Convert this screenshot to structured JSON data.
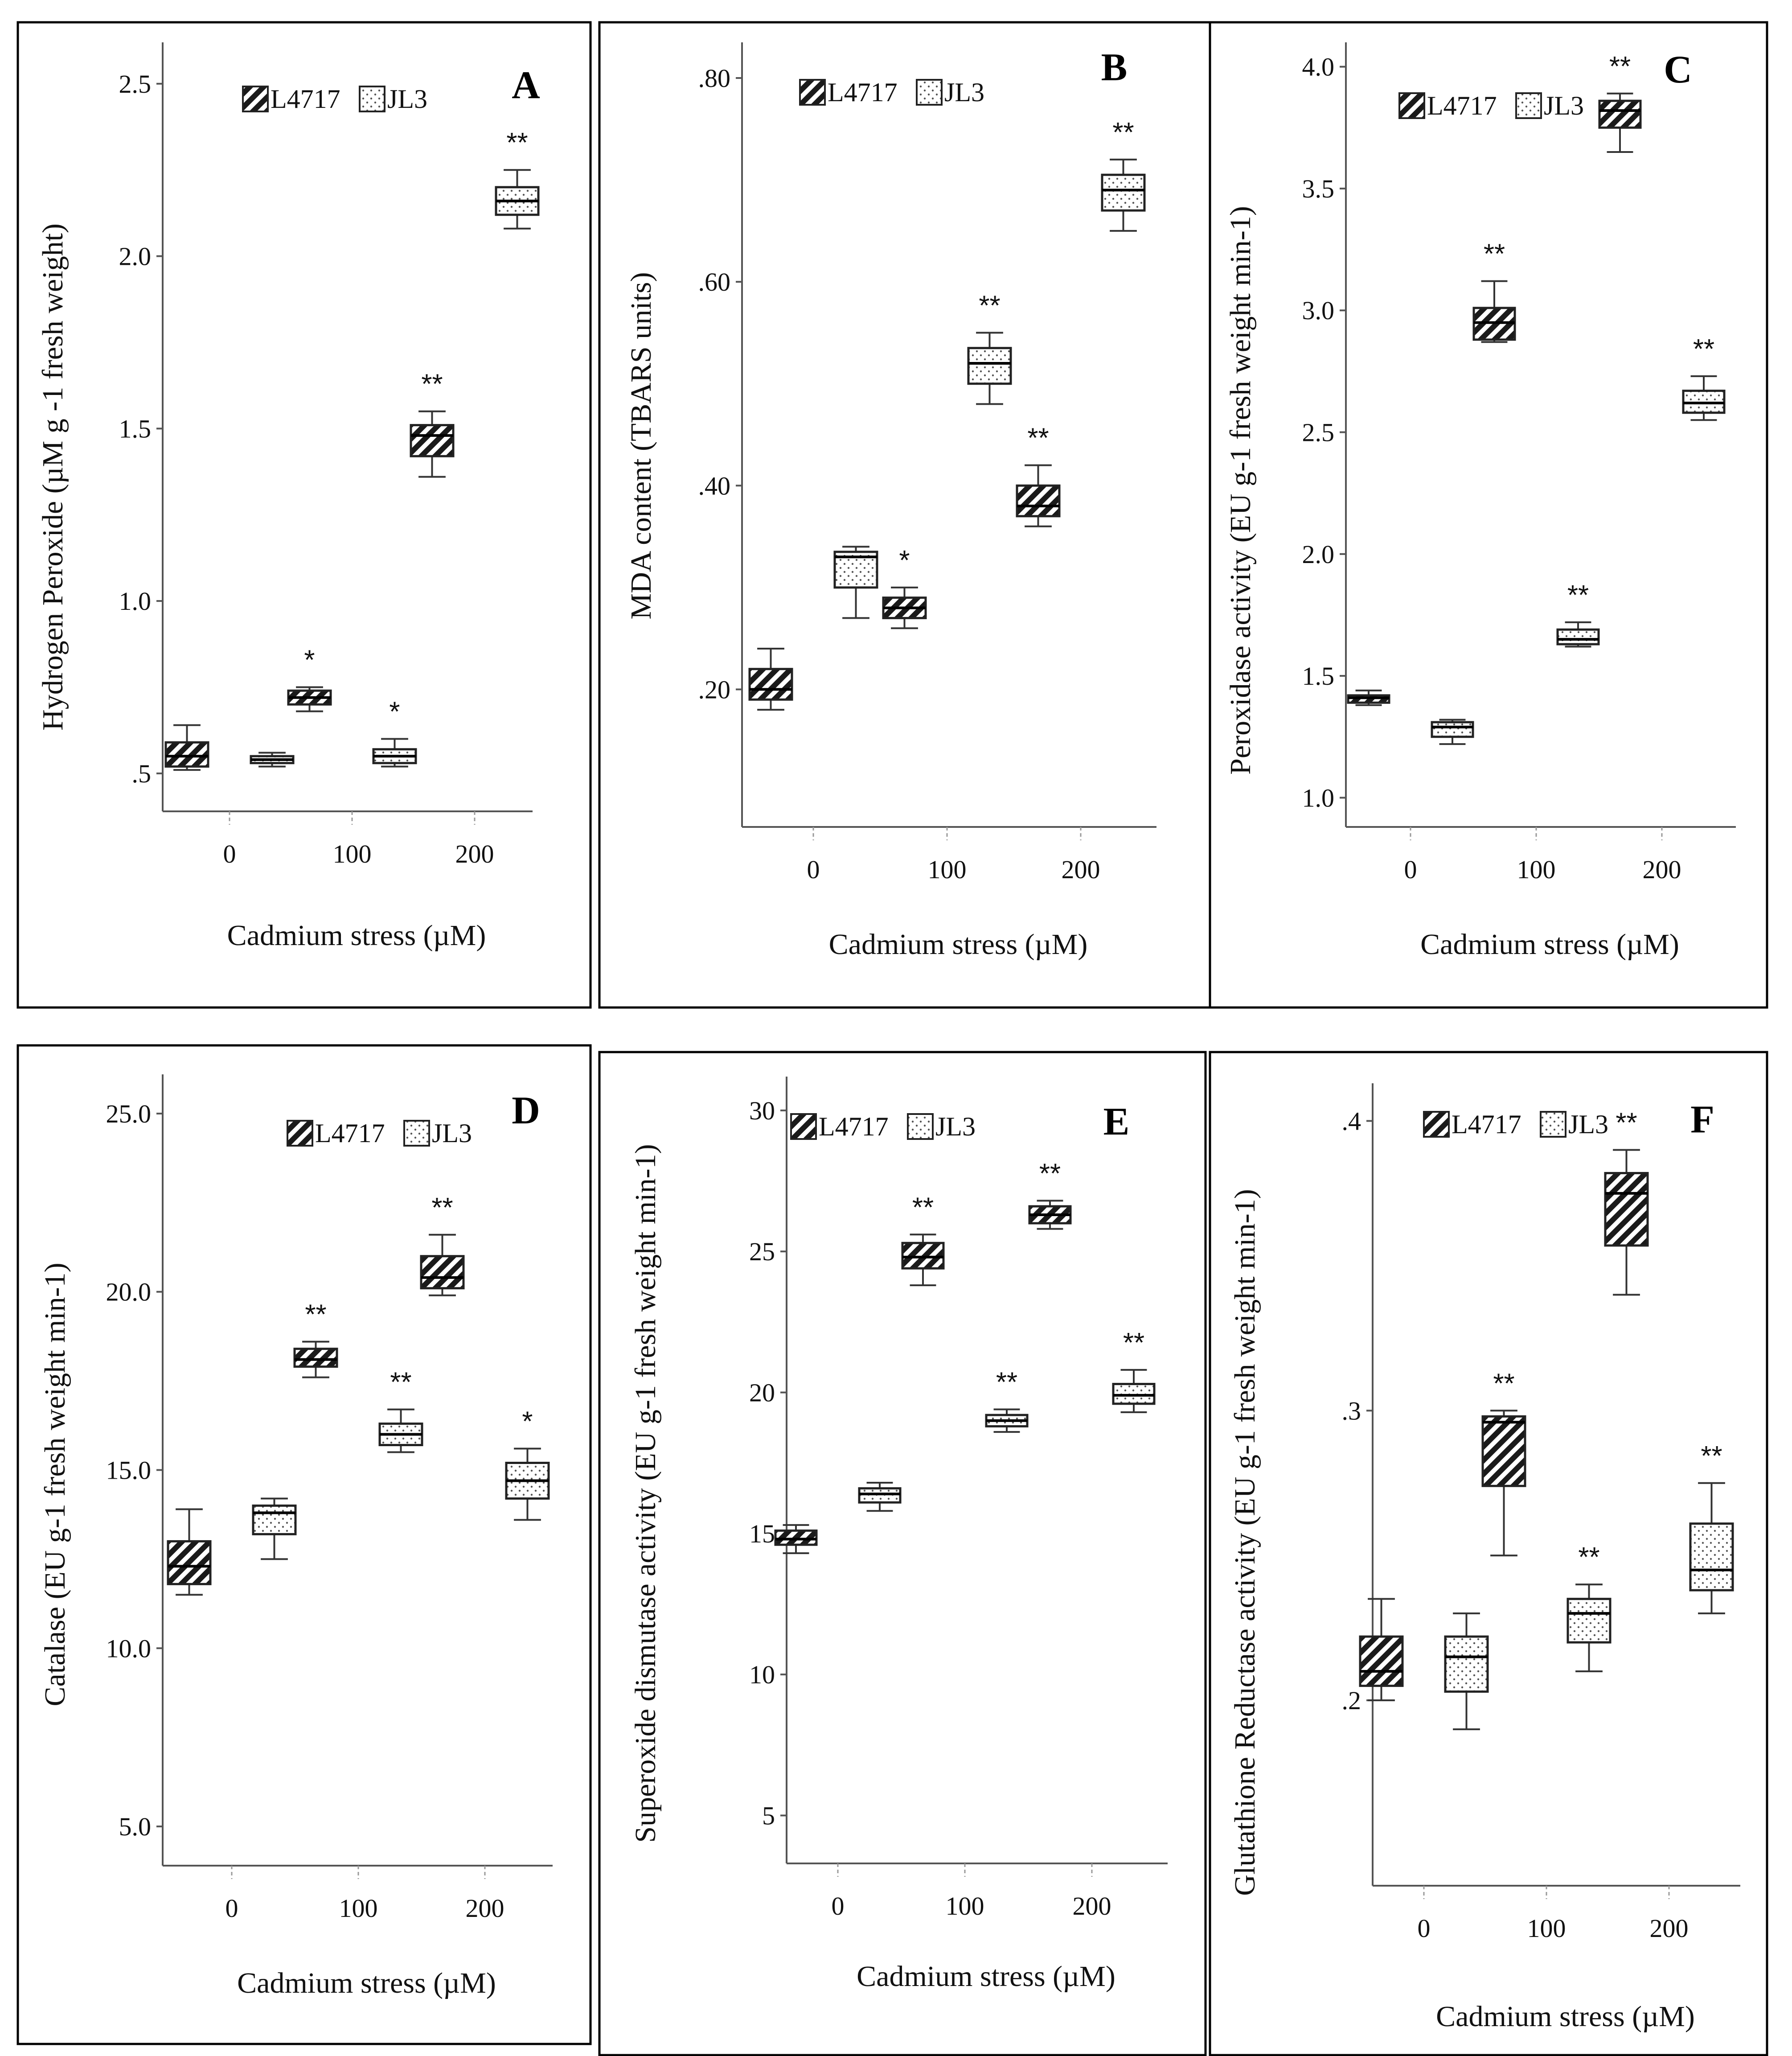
{
  "legend": {
    "series_a": "L4717",
    "series_b": "JL3"
  },
  "chart_data": [
    {
      "panel": "A",
      "type": "boxplot",
      "ylabel": "Hydrogen Peroxide (µM g -1 fresh weight)",
      "xlabel": "Cadmium stress (µM)",
      "categories": [
        "0",
        "100",
        "200"
      ],
      "ylim": [
        0.39,
        2.62
      ],
      "yticks": [
        0.5,
        1.0,
        1.5,
        2.0,
        2.5
      ],
      "yticklabels": [
        ".5",
        "1.0",
        "1.5",
        "2.0",
        "2.5"
      ],
      "series": [
        {
          "name": "L4717",
          "boxes": [
            {
              "min": 0.51,
              "q1": 0.52,
              "median": 0.55,
              "q3": 0.59,
              "max": 0.64,
              "sig": ""
            },
            {
              "min": 0.68,
              "q1": 0.7,
              "median": 0.72,
              "q3": 0.74,
              "max": 0.75,
              "sig": "*"
            },
            {
              "min": 1.36,
              "q1": 1.42,
              "median": 1.48,
              "q3": 1.51,
              "max": 1.55,
              "sig": "**"
            }
          ]
        },
        {
          "name": "JL3",
          "boxes": [
            {
              "min": 0.52,
              "q1": 0.53,
              "median": 0.54,
              "q3": 0.55,
              "max": 0.56,
              "sig": ""
            },
            {
              "min": 0.52,
              "q1": 0.53,
              "median": 0.55,
              "q3": 0.57,
              "max": 0.6,
              "sig": "*"
            },
            {
              "min": 2.08,
              "q1": 2.12,
              "median": 2.16,
              "q3": 2.2,
              "max": 2.25,
              "sig": "**"
            }
          ]
        }
      ]
    },
    {
      "panel": "B",
      "type": "boxplot",
      "ylabel": "MDA content  (TBARS units)",
      "xlabel": "Cadmium stress (µM)",
      "categories": [
        "0",
        "100",
        "200"
      ],
      "ylim": [
        0.065,
        0.835
      ],
      "yticks": [
        0.2,
        0.4,
        0.6,
        0.8
      ],
      "yticklabels": [
        ".20",
        ".40",
        ".60",
        ".80"
      ],
      "series": [
        {
          "name": "L4717",
          "boxes": [
            {
              "min": 0.18,
              "q1": 0.19,
              "median": 0.2,
              "q3": 0.22,
              "max": 0.24,
              "sig": ""
            },
            {
              "min": 0.26,
              "q1": 0.27,
              "median": 0.28,
              "q3": 0.29,
              "max": 0.3,
              "sig": "*"
            },
            {
              "min": 0.36,
              "q1": 0.37,
              "median": 0.38,
              "q3": 0.4,
              "max": 0.42,
              "sig": "**"
            }
          ]
        },
        {
          "name": "JL3",
          "boxes": [
            {
              "min": 0.27,
              "q1": 0.3,
              "median": 0.33,
              "q3": 0.335,
              "max": 0.34,
              "sig": ""
            },
            {
              "min": 0.48,
              "q1": 0.5,
              "median": 0.52,
              "q3": 0.535,
              "max": 0.55,
              "sig": "**"
            },
            {
              "min": 0.65,
              "q1": 0.67,
              "median": 0.69,
              "q3": 0.705,
              "max": 0.72,
              "sig": "**"
            }
          ]
        }
      ]
    },
    {
      "panel": "C",
      "type": "boxplot",
      "ylabel": "Peroxidase activity (EU g-1 fresh weight min-1)",
      "xlabel": "Cadmium stress (µM)",
      "categories": [
        "0",
        "100",
        "200"
      ],
      "ylim": [
        0.88,
        4.1
      ],
      "yticks": [
        1.0,
        1.5,
        2.0,
        2.5,
        3.0,
        3.5,
        4.0
      ],
      "yticklabels": [
        "1.0",
        "1.5",
        "2.0",
        "2.5",
        "3.0",
        "3.5",
        "4.0"
      ],
      "series": [
        {
          "name": "L4717",
          "boxes": [
            {
              "min": 1.38,
              "q1": 1.39,
              "median": 1.41,
              "q3": 1.42,
              "max": 1.44,
              "sig": ""
            },
            {
              "min": 2.87,
              "q1": 2.88,
              "median": 2.95,
              "q3": 3.01,
              "max": 3.12,
              "sig": "**"
            },
            {
              "min": 3.65,
              "q1": 3.75,
              "median": 3.82,
              "q3": 3.86,
              "max": 3.89,
              "sig": "**"
            }
          ]
        },
        {
          "name": "JL3",
          "boxes": [
            {
              "min": 1.22,
              "q1": 1.25,
              "median": 1.29,
              "q3": 1.31,
              "max": 1.32,
              "sig": ""
            },
            {
              "min": 1.62,
              "q1": 1.63,
              "median": 1.65,
              "q3": 1.69,
              "max": 1.72,
              "sig": "**"
            },
            {
              "min": 2.55,
              "q1": 2.58,
              "median": 2.62,
              "q3": 2.67,
              "max": 2.73,
              "sig": "**"
            }
          ]
        }
      ]
    },
    {
      "panel": "D",
      "type": "boxplot",
      "ylabel": "Catalase (EU g-1 fresh weight min-1)",
      "xlabel": "Cadmium stress (µM)",
      "categories": [
        "0",
        "100",
        "200"
      ],
      "ylim": [
        3.9,
        26.1
      ],
      "yticks": [
        5.0,
        10.0,
        15.0,
        20.0,
        25.0
      ],
      "yticklabels": [
        "5.0",
        "10.0",
        "15.0",
        "20.0",
        "25.0"
      ],
      "series": [
        {
          "name": "L4717",
          "boxes": [
            {
              "min": 11.5,
              "q1": 11.8,
              "median": 12.3,
              "q3": 13.0,
              "max": 13.9,
              "sig": ""
            },
            {
              "min": 17.6,
              "q1": 17.9,
              "median": 18.1,
              "q3": 18.4,
              "max": 18.6,
              "sig": "**"
            },
            {
              "min": 19.9,
              "q1": 20.1,
              "median": 20.4,
              "q3": 21.0,
              "max": 21.6,
              "sig": "**"
            }
          ]
        },
        {
          "name": "JL3",
          "boxes": [
            {
              "min": 12.5,
              "q1": 13.2,
              "median": 13.8,
              "q3": 14.0,
              "max": 14.2,
              "sig": ""
            },
            {
              "min": 15.5,
              "q1": 15.7,
              "median": 16.0,
              "q3": 16.3,
              "max": 16.7,
              "sig": "**"
            },
            {
              "min": 13.6,
              "q1": 14.2,
              "median": 14.7,
              "q3": 15.2,
              "max": 15.6,
              "sig": "*"
            }
          ]
        }
      ]
    },
    {
      "panel": "E",
      "type": "boxplot",
      "ylabel": "Superoxide dismutase activity (EU g-1 fresh weight min-1)",
      "xlabel": "Cadmium stress (µM)",
      "categories": [
        "0",
        "100",
        "200"
      ],
      "ylim": [
        3.3,
        31.2
      ],
      "yticks": [
        5,
        10,
        15,
        20,
        25,
        30
      ],
      "yticklabels": [
        "5",
        "10",
        "15",
        "20",
        "25",
        "30"
      ],
      "series": [
        {
          "name": "L4717",
          "boxes": [
            {
              "min": 14.3,
              "q1": 14.6,
              "median": 14.8,
              "q3": 15.1,
              "max": 15.3,
              "sig": ""
            },
            {
              "min": 23.8,
              "q1": 24.4,
              "median": 24.8,
              "q3": 25.3,
              "max": 25.6,
              "sig": "**"
            },
            {
              "min": 25.8,
              "q1": 26.0,
              "median": 26.3,
              "q3": 26.6,
              "max": 26.8,
              "sig": "**"
            }
          ]
        },
        {
          "name": "JL3",
          "boxes": [
            {
              "min": 15.8,
              "q1": 16.1,
              "median": 16.4,
              "q3": 16.6,
              "max": 16.8,
              "sig": ""
            },
            {
              "min": 18.6,
              "q1": 18.8,
              "median": 19.0,
              "q3": 19.2,
              "max": 19.4,
              "sig": "**"
            },
            {
              "min": 19.3,
              "q1": 19.6,
              "median": 19.9,
              "q3": 20.3,
              "max": 20.8,
              "sig": "**"
            }
          ]
        }
      ]
    },
    {
      "panel": "F",
      "type": "boxplot",
      "ylabel": "Glutathione Reductase activity (EU g-1 fresh weight min-1)",
      "xlabel": "Cadmium stress (µM)",
      "categories": [
        "0",
        "100",
        "200"
      ],
      "ylim": [
        0.136,
        0.413
      ],
      "yticks": [
        0.2,
        0.3,
        0.4
      ],
      "yticklabels": [
        ".2",
        ".3",
        ".4"
      ],
      "series": [
        {
          "name": "L4717",
          "boxes": [
            {
              "min": 0.2,
              "q1": 0.205,
              "median": 0.21,
              "q3": 0.222,
              "max": 0.235,
              "sig": ""
            },
            {
              "min": 0.25,
              "q1": 0.274,
              "median": 0.296,
              "q3": 0.298,
              "max": 0.3,
              "sig": "**"
            },
            {
              "min": 0.34,
              "q1": 0.357,
              "median": 0.375,
              "q3": 0.382,
              "max": 0.39,
              "sig": "**"
            }
          ]
        },
        {
          "name": "JL3",
          "boxes": [
            {
              "min": 0.19,
              "q1": 0.203,
              "median": 0.215,
              "q3": 0.222,
              "max": 0.23,
              "sig": ""
            },
            {
              "min": 0.21,
              "q1": 0.22,
              "median": 0.23,
              "q3": 0.235,
              "max": 0.24,
              "sig": "**"
            },
            {
              "min": 0.23,
              "q1": 0.238,
              "median": 0.245,
              "q3": 0.261,
              "max": 0.275,
              "sig": "**"
            }
          ]
        }
      ]
    }
  ]
}
